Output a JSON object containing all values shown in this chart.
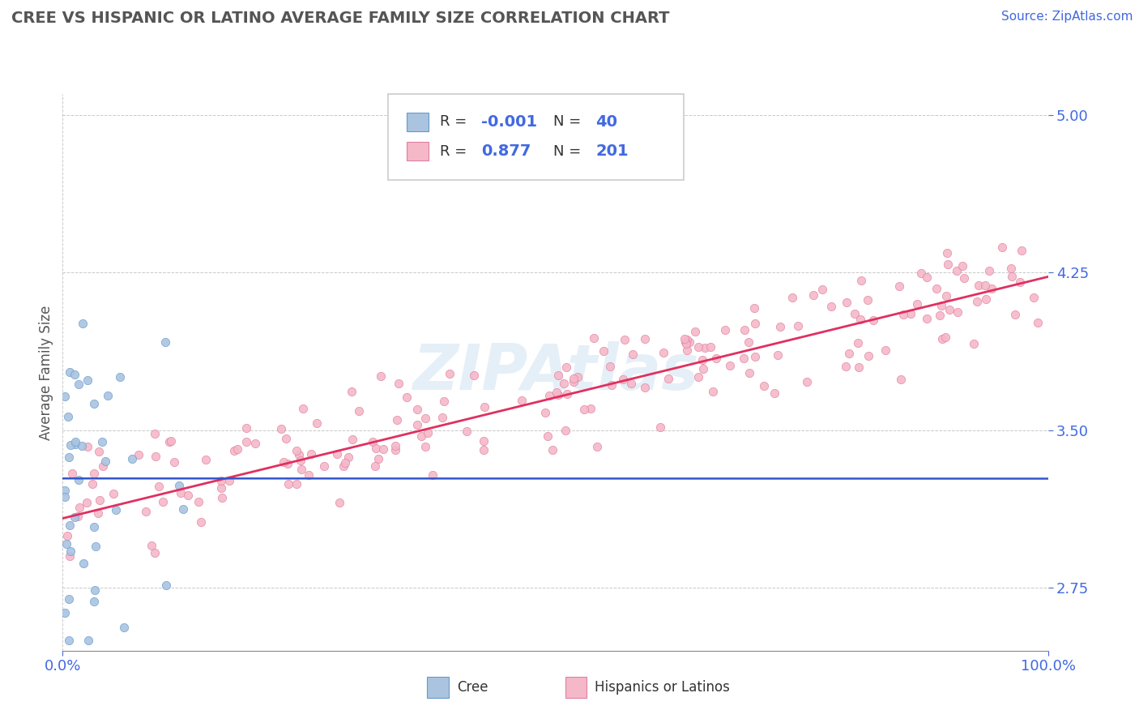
{
  "title": "CREE VS HISPANIC OR LATINO AVERAGE FAMILY SIZE CORRELATION CHART",
  "source_text": "Source: ZipAtlas.com",
  "ylabel": "Average Family Size",
  "xmin": 0.0,
  "xmax": 1.0,
  "ymin": 2.45,
  "ymax": 5.1,
  "yticks": [
    2.75,
    3.5,
    4.25,
    5.0
  ],
  "xticks": [
    0.0,
    1.0
  ],
  "xticklabels": [
    "0.0%",
    "100.0%"
  ],
  "cree_color": "#aac4e0",
  "cree_edge_color": "#6699cc",
  "hispanic_color": "#f5b8c8",
  "hispanic_edge_color": "#e080a0",
  "cree_line_color": "#3355cc",
  "hispanic_line_color": "#e03060",
  "background_color": "#ffffff",
  "grid_color": "#bbbbbb",
  "axis_label_color": "#4169e1",
  "legend_R1": "-0.001",
  "legend_N1": "40",
  "legend_R2": "0.877",
  "legend_N2": "201",
  "watermark": "ZIPAtlas",
  "cree_R": -0.001,
  "cree_N": 40,
  "hispanic_R": 0.877,
  "hispanic_N": 201,
  "hispanic_slope": 1.15,
  "hispanic_intercept": 3.08,
  "cree_slope": -0.001,
  "cree_intercept": 3.27
}
